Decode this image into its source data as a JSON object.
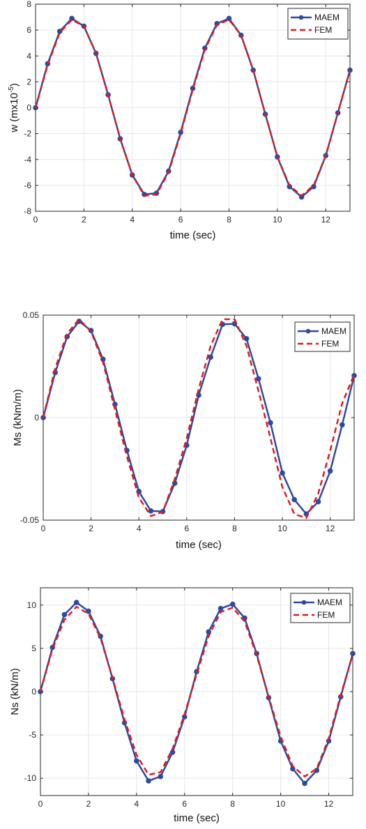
{
  "colors": {
    "maem": "#2e4a9e",
    "fem": "#e31a1c",
    "grid": "#e6e6e6",
    "axis": "#262626"
  },
  "chart_data": [
    {
      "type": "line",
      "xlabel": "time (sec)",
      "ylabel_prefix": "w (mx10",
      "ylabel_sup": "-5",
      "ylabel_suffix": ")",
      "xlim": [
        0,
        13
      ],
      "ylim": [
        -8,
        8
      ],
      "xticks": [
        0,
        2,
        4,
        6,
        8,
        10,
        12
      ],
      "yticks": [
        -8,
        -6,
        -4,
        -2,
        0,
        2,
        4,
        6,
        8
      ],
      "xtick_labels": [
        "0",
        "2",
        "4",
        "6",
        "8",
        "10",
        "12"
      ],
      "ytick_labels": [
        "-8",
        "-6",
        "-4",
        "-2",
        "0",
        "2",
        "4",
        "6",
        "8"
      ],
      "grid": true,
      "legend": "top-right",
      "series": [
        {
          "name": "MAEM",
          "x": [
            0,
            0.5,
            1,
            1.5,
            2,
            2.5,
            3,
            3.5,
            4,
            4.5,
            5,
            5.5,
            6,
            6.5,
            7,
            7.5,
            8,
            8.5,
            9,
            9.5,
            10,
            10.5,
            11,
            11.5,
            12,
            12.5,
            13
          ],
          "y": [
            0,
            3.4,
            5.9,
            6.9,
            6.3,
            4.2,
            1.0,
            -2.4,
            -5.2,
            -6.7,
            -6.6,
            -4.9,
            -1.9,
            1.5,
            4.6,
            6.5,
            6.9,
            5.6,
            2.9,
            -0.5,
            -3.8,
            -6.1,
            -6.9,
            -6.1,
            -3.7,
            -0.4,
            2.9
          ]
        },
        {
          "name": "FEM",
          "x": [
            0,
            0.5,
            1,
            1.5,
            2,
            2.5,
            3,
            3.5,
            4,
            4.5,
            5,
            5.5,
            6,
            6.5,
            7,
            7.5,
            8,
            8.5,
            9,
            9.5,
            10,
            10.5,
            11,
            11.5,
            12,
            12.5,
            13
          ],
          "y": [
            0,
            3.3,
            5.8,
            6.8,
            6.3,
            4.2,
            1.0,
            -2.4,
            -5.2,
            -6.8,
            -6.7,
            -5.0,
            -2.0,
            1.4,
            4.5,
            6.4,
            6.8,
            5.6,
            2.9,
            -0.5,
            -3.8,
            -6.0,
            -6.8,
            -6.0,
            -3.7,
            -0.4,
            2.9
          ]
        }
      ]
    },
    {
      "type": "line",
      "xlabel": "time (sec)",
      "ylabel": "Ms (kNm/m)",
      "xlim": [
        0,
        13
      ],
      "ylim": [
        -0.05,
        0.05
      ],
      "xticks": [
        0,
        2,
        4,
        6,
        8,
        10,
        12
      ],
      "yticks": [
        -0.05,
        0,
        0.05
      ],
      "xtick_labels": [
        "0",
        "2",
        "4",
        "6",
        "8",
        "10",
        "12"
      ],
      "ytick_labels": [
        "-0.05",
        "0",
        "0.05"
      ],
      "grid": true,
      "legend": "top-right",
      "series": [
        {
          "name": "MAEM",
          "x": [
            0,
            0.5,
            1,
            1.5,
            2,
            2.5,
            3,
            3.5,
            4,
            4.5,
            5,
            5.5,
            6,
            6.5,
            7,
            7.5,
            8,
            8.5,
            9,
            9.5,
            10,
            10.5,
            11,
            11.5,
            12,
            12.5,
            13
          ],
          "y": [
            0,
            0.022,
            0.0395,
            0.047,
            0.0425,
            0.0285,
            0.0065,
            -0.016,
            -0.036,
            -0.0455,
            -0.0458,
            -0.032,
            -0.0135,
            0.011,
            0.0295,
            0.0455,
            0.0458,
            0.0385,
            0.019,
            -0.0025,
            -0.027,
            -0.04,
            -0.047,
            -0.041,
            -0.026,
            -0.0035,
            0.0205
          ]
        },
        {
          "name": "FEM",
          "x": [
            0,
            0.5,
            1,
            1.5,
            2,
            2.5,
            3,
            3.5,
            4,
            4.5,
            5,
            5.5,
            6,
            6.5,
            7,
            7.5,
            8,
            8.5,
            9,
            9.5,
            10,
            10.5,
            11,
            11.5,
            12,
            12.5,
            13
          ],
          "y": [
            0,
            0.024,
            0.041,
            0.048,
            0.042,
            0.027,
            0.004,
            -0.019,
            -0.039,
            -0.048,
            -0.046,
            -0.03,
            -0.01,
            0.014,
            0.035,
            0.048,
            0.048,
            0.035,
            0.013,
            -0.01,
            -0.034,
            -0.047,
            -0.049,
            -0.037,
            -0.016,
            0.007,
            0.021
          ]
        }
      ]
    },
    {
      "type": "line",
      "xlabel": "time (sec)",
      "ylabel": "Ns (kN/m)",
      "xlim": [
        0,
        13
      ],
      "ylim": [
        -12,
        12
      ],
      "xticks": [
        0,
        2,
        4,
        6,
        8,
        10,
        12
      ],
      "yticks": [
        -10,
        -5,
        0,
        5,
        10
      ],
      "xtick_labels": [
        "0",
        "2",
        "4",
        "6",
        "8",
        "10",
        "12"
      ],
      "ytick_labels": [
        "-10",
        "-5",
        "0",
        "5",
        "10"
      ],
      "grid": true,
      "legend": "top-right",
      "series": [
        {
          "name": "MAEM",
          "x": [
            0,
            0.5,
            1,
            1.5,
            2,
            2.5,
            3,
            3.5,
            4,
            4.5,
            5,
            5.5,
            6,
            6.5,
            7,
            7.5,
            8,
            8.5,
            9,
            9.5,
            10,
            10.5,
            11,
            11.5,
            12,
            12.5,
            13
          ],
          "y": [
            0,
            5.1,
            8.9,
            10.3,
            9.3,
            6.4,
            1.5,
            -3.6,
            -8.0,
            -10.3,
            -9.8,
            -7.0,
            -2.9,
            2.3,
            6.9,
            9.6,
            10.1,
            8.5,
            4.4,
            -0.7,
            -5.7,
            -8.9,
            -10.6,
            -9.1,
            -5.7,
            -0.6,
            4.4
          ]
        },
        {
          "name": "FEM",
          "x": [
            0,
            0.5,
            1,
            1.5,
            2,
            2.5,
            3,
            3.5,
            4,
            4.5,
            5,
            5.5,
            6,
            6.5,
            7,
            7.5,
            8,
            8.5,
            9,
            9.5,
            10,
            10.5,
            11,
            11.5,
            12,
            12.5,
            13
          ],
          "y": [
            0,
            4.9,
            8.3,
            9.8,
            9.0,
            6.2,
            1.6,
            -3.2,
            -7.3,
            -9.6,
            -9.3,
            -6.6,
            -2.6,
            2.0,
            6.4,
            9.2,
            9.7,
            8.1,
            4.2,
            -0.6,
            -5.2,
            -8.6,
            -9.8,
            -8.9,
            -5.4,
            -0.4,
            4.3
          ]
        }
      ]
    }
  ]
}
